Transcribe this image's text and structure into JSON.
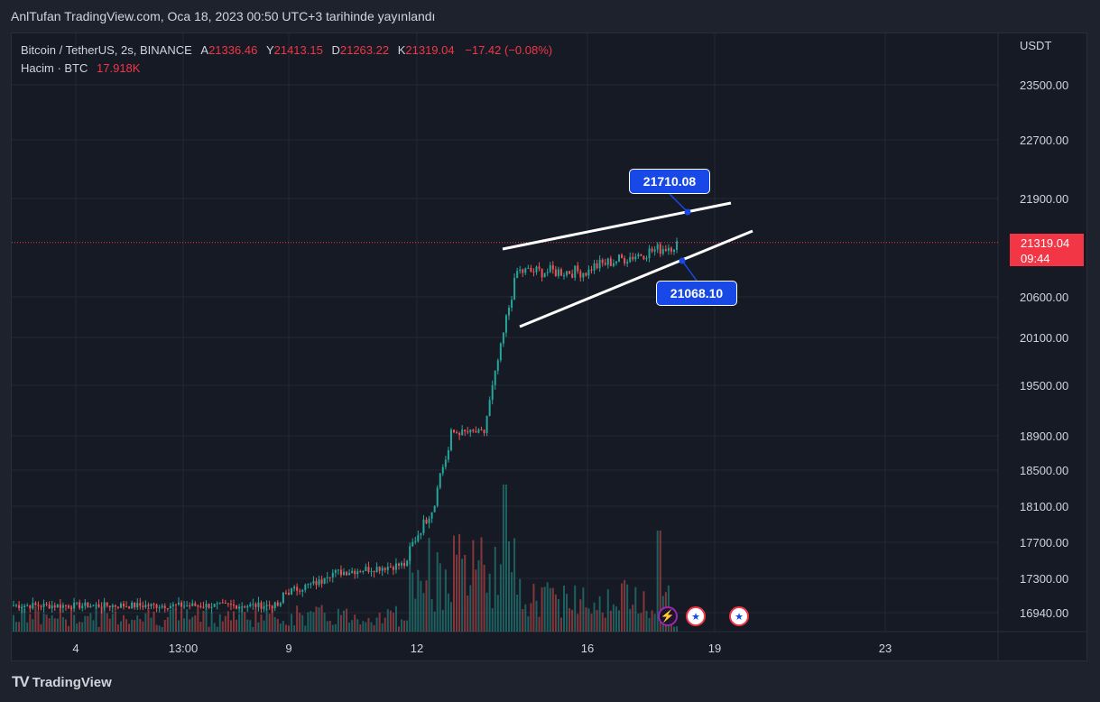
{
  "header": {
    "publisher": "AnlTufan TradingView.com, Oca 18, 2023 00:50 UTC+3 tarihinde yayınlandı"
  },
  "legend": {
    "symbol": "Bitcoin / TetherUS, 2s, BINANCE",
    "open_label": "A",
    "open": "21336.46",
    "high_label": "Y",
    "high": "21413.15",
    "low_label": "D",
    "low": "21263.22",
    "close_label": "K",
    "close": "21319.04",
    "change": "−17.42 (−0.08%)",
    "volume_label": "Hacim · BTC",
    "volume": "17.918K"
  },
  "price_axis": {
    "currency": "USDT",
    "ticks": [
      "23500.00",
      "22700.00",
      "21900.00",
      "20600.00",
      "20100.00",
      "19500.00",
      "18900.00",
      "18500.00",
      "18100.00",
      "17700.00",
      "17300.00",
      "16940.00"
    ],
    "last_price": "21319.04",
    "countdown": "09:44"
  },
  "time_axis": {
    "ticks": [
      "4",
      "13:00",
      "9",
      "12",
      "16",
      "19",
      "23"
    ]
  },
  "annotations": {
    "upper_price": "21710.08",
    "lower_price": "21068.10"
  },
  "colors": {
    "up": "#26a69a",
    "down": "#ef5350",
    "accent": "#1848e6",
    "line": "#ffffff"
  },
  "events": [
    "lightning-icon",
    "us-flag-icon",
    "us-flag-icon"
  ],
  "branding": {
    "logo": "TradingView"
  },
  "chart_data": {
    "type": "candlestick",
    "pattern": "rising-wedge",
    "upper_trendline_point": 21710.08,
    "lower_trendline_point": 21068.1,
    "last_price": 21319.04
  }
}
